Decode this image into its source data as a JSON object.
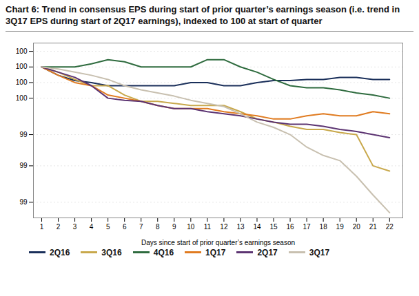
{
  "chart_data": {
    "type": "line",
    "title": "Chart 6: Trend in consensus EPS during start of prior quarter’s earnings season (i.e. trend in 3Q17 EPS during start of 2Q17 earnings), indexed to 100 at start of quarter",
    "xlabel": "Days since start of prior quarter’s earnings season",
    "x": [
      1,
      2,
      3,
      4,
      5,
      6,
      7,
      8,
      9,
      10,
      11,
      12,
      13,
      14,
      15,
      16,
      17,
      18,
      19,
      20,
      21,
      22
    ],
    "xlim": [
      0.5,
      22.8
    ],
    "xticks": [
      1,
      2,
      3,
      4,
      5,
      6,
      7,
      8,
      9,
      10,
      11,
      12,
      13,
      14,
      15,
      16,
      17,
      18,
      19,
      20,
      21,
      22
    ],
    "ylim": [
      98.6,
      100.28
    ],
    "yticks": [
      {
        "value": 100.2,
        "label": "100"
      },
      {
        "value": 100.05,
        "label": "100"
      },
      {
        "value": 99.9,
        "label": "100"
      },
      {
        "value": 99.75,
        "label": "100"
      },
      {
        "value": 99.4,
        "label": "99"
      },
      {
        "value": 99.1,
        "label": "99"
      },
      {
        "value": 98.75,
        "label": "99"
      }
    ],
    "grid": "y",
    "legend": "bottom",
    "series": [
      {
        "name": "2Q16",
        "color": "#1a2f5a",
        "values": [
          100.05,
          99.97,
          99.92,
          99.9,
          99.87,
          99.87,
          99.87,
          99.87,
          99.87,
          99.9,
          99.9,
          99.87,
          99.87,
          99.9,
          99.92,
          99.92,
          99.93,
          99.93,
          99.95,
          99.95,
          99.93,
          99.93
        ]
      },
      {
        "name": "3Q16",
        "color": "#c8a84b",
        "values": [
          100.05,
          100.0,
          99.93,
          99.87,
          99.87,
          99.78,
          99.72,
          99.72,
          99.7,
          99.68,
          99.68,
          99.68,
          99.62,
          99.55,
          99.52,
          99.48,
          99.45,
          99.45,
          99.42,
          99.4,
          99.1,
          99.05
        ]
      },
      {
        "name": "4Q16",
        "color": "#2e6b3e",
        "values": [
          100.05,
          100.05,
          100.05,
          100.08,
          100.12,
          100.1,
          100.05,
          100.05,
          100.05,
          100.05,
          100.12,
          100.12,
          100.05,
          100.0,
          99.93,
          99.87,
          99.85,
          99.85,
          99.83,
          99.8,
          99.78,
          99.75
        ]
      },
      {
        "name": "1Q17",
        "color": "#e07b20",
        "values": [
          100.05,
          99.97,
          99.9,
          99.87,
          99.78,
          99.75,
          99.72,
          99.68,
          99.65,
          99.65,
          99.65,
          99.62,
          99.6,
          99.58,
          99.55,
          99.55,
          99.58,
          99.6,
          99.58,
          99.58,
          99.62,
          99.6
        ]
      },
      {
        "name": "2Q17",
        "color": "#5c3472",
        "values": [
          100.05,
          100.0,
          99.95,
          99.87,
          99.75,
          99.73,
          99.72,
          99.68,
          99.65,
          99.65,
          99.62,
          99.6,
          99.58,
          99.55,
          99.52,
          99.5,
          99.5,
          99.48,
          99.45,
          99.43,
          99.4,
          99.37
        ]
      },
      {
        "name": "3Q17",
        "color": "#c8c0b0",
        "values": [
          100.05,
          100.03,
          100.0,
          99.97,
          99.93,
          99.87,
          99.83,
          99.8,
          99.77,
          99.73,
          99.7,
          99.67,
          99.6,
          99.52,
          99.47,
          99.4,
          99.28,
          99.2,
          99.15,
          99.0,
          98.82,
          98.65
        ]
      }
    ]
  }
}
